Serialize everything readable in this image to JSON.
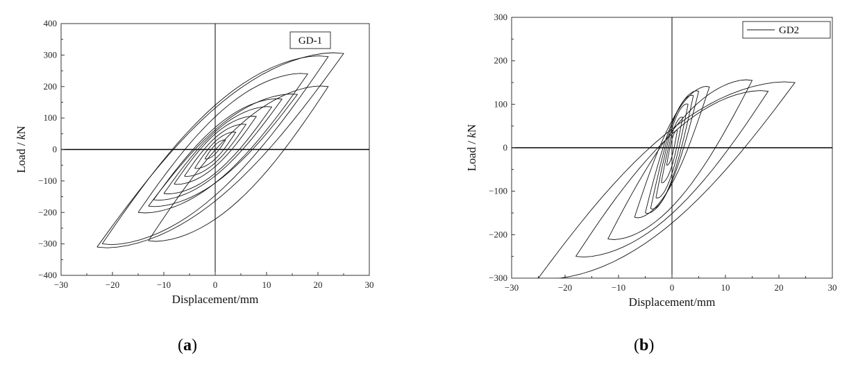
{
  "chart_data": [
    {
      "type": "line",
      "panel": "a",
      "caption_letter": "a",
      "xlabel": "Displacement/mm",
      "ylabel_prefix": "Load / ",
      "ylabel_unit": "kN",
      "xlim": [
        -30,
        30
      ],
      "ylim": [
        -400,
        400
      ],
      "xticks": [
        -30,
        -20,
        -10,
        0,
        10,
        20,
        30
      ],
      "yticks": [
        -400,
        -300,
        -200,
        -100,
        0,
        100,
        200,
        300,
        400
      ],
      "legend": "GD-1",
      "legend_position": "top-right",
      "legend_has_line": false,
      "series": [
        {
          "loops": [
            {
              "amp_pos": 2,
              "peak_pos": 30,
              "amp_neg": -2,
              "peak_neg": -30
            },
            {
              "amp_pos": 4,
              "peak_pos": 55,
              "amp_neg": -4,
              "peak_neg": -60
            },
            {
              "amp_pos": 6,
              "peak_pos": 80,
              "amp_neg": -6,
              "peak_neg": -85
            },
            {
              "amp_pos": 8,
              "peak_pos": 105,
              "amp_neg": -8,
              "peak_neg": -110
            },
            {
              "amp_pos": 11,
              "peak_pos": 135,
              "amp_neg": -10,
              "peak_neg": -140
            },
            {
              "amp_pos": 13,
              "peak_pos": 160,
              "amp_neg": -12,
              "peak_neg": -160
            },
            {
              "amp_pos": 16,
              "peak_pos": 175,
              "amp_neg": -13,
              "peak_neg": -180
            },
            {
              "amp_pos": 18,
              "peak_pos": 240,
              "amp_neg": -15,
              "peak_neg": -200
            },
            {
              "amp_pos": 22,
              "peak_pos": 200,
              "amp_neg": -13,
              "peak_neg": -290
            },
            {
              "amp_pos": 22,
              "peak_pos": 295,
              "amp_neg": -22,
              "peak_neg": -300
            },
            {
              "amp_pos": 25,
              "peak_pos": 305,
              "amp_neg": -23,
              "peak_neg": -310
            }
          ]
        }
      ]
    },
    {
      "type": "line",
      "panel": "b",
      "caption_letter": "b",
      "xlabel": "Displacement/mm",
      "ylabel_prefix": "Load / ",
      "ylabel_unit": "kN",
      "xlim": [
        -30,
        30
      ],
      "ylim": [
        -300,
        300
      ],
      "xticks": [
        -30,
        -20,
        -10,
        0,
        10,
        20,
        30
      ],
      "yticks": [
        -300,
        -200,
        -100,
        0,
        100,
        200,
        300
      ],
      "legend": "GD2",
      "legend_position": "top-right",
      "legend_has_line": true,
      "series": [
        {
          "loops": [
            {
              "amp_pos": 1,
              "peak_pos": 40,
              "amp_neg": -1,
              "peak_neg": -40
            },
            {
              "amp_pos": 2,
              "peak_pos": 70,
              "amp_neg": -2,
              "peak_neg": -80
            },
            {
              "amp_pos": 3,
              "peak_pos": 100,
              "amp_neg": -3,
              "peak_neg": -115
            },
            {
              "amp_pos": 4,
              "peak_pos": 120,
              "amp_neg": -4,
              "peak_neg": -140
            },
            {
              "amp_pos": 5,
              "peak_pos": 130,
              "amp_neg": -5,
              "peak_neg": -150
            },
            {
              "amp_pos": 7,
              "peak_pos": 140,
              "amp_neg": -7,
              "peak_neg": -160
            },
            {
              "amp_pos": 15,
              "peak_pos": 155,
              "amp_neg": -12,
              "peak_neg": -210
            },
            {
              "amp_pos": 18,
              "peak_pos": 130,
              "amp_neg": -18,
              "peak_neg": -250
            },
            {
              "amp_pos": 23,
              "peak_pos": 150,
              "amp_neg": -25,
              "peak_neg": -300
            }
          ]
        }
      ]
    }
  ]
}
